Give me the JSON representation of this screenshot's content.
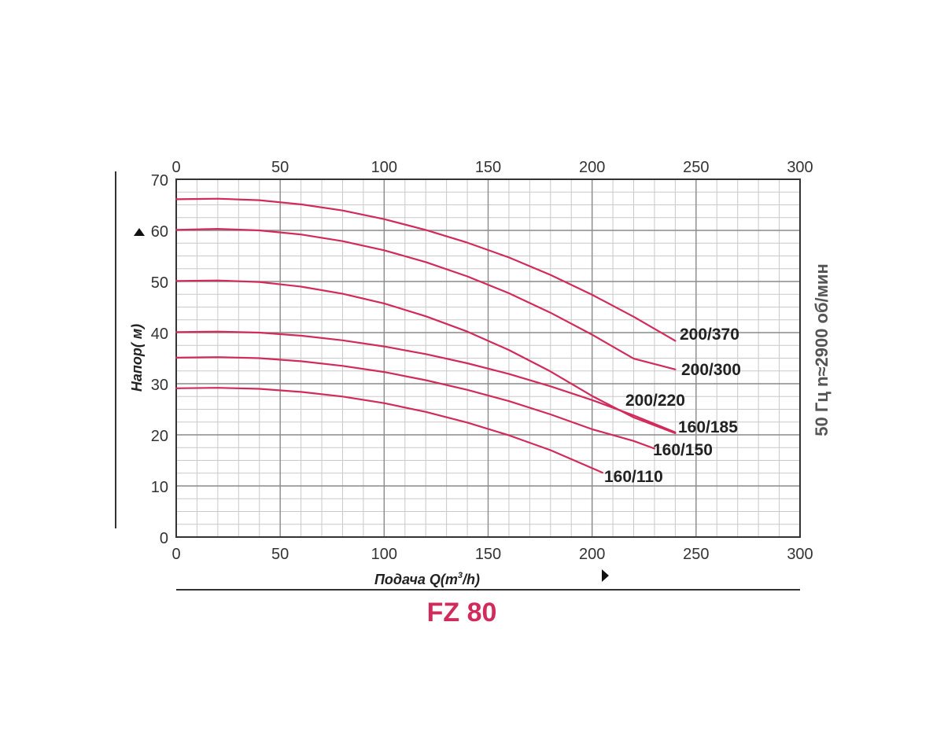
{
  "chart_data": {
    "type": "line",
    "title": "FZ 80",
    "xlabel": "Подача Q(m³/h)",
    "xlabel_main": "Подача Q(m",
    "xlabel_sup": "3",
    "xlabel_tail": "/h)",
    "ylabel": "Напор( м)",
    "right_label": "50 Гц  n≈2900 об/мин",
    "xlim": [
      0,
      300
    ],
    "ylim": [
      0,
      70
    ],
    "x_ticks": [
      0,
      50,
      100,
      150,
      200,
      250,
      300
    ],
    "y_ticks": [
      0,
      10,
      20,
      30,
      40,
      50,
      60,
      70
    ],
    "x_tick_labels": [
      "0",
      "50",
      "100",
      "150",
      "200",
      "250",
      "300"
    ],
    "y_tick_labels": [
      "0",
      "10",
      "20",
      "30",
      "40",
      "50",
      "60",
      "70"
    ],
    "minor_grid": {
      "x_step": 10,
      "y_step": 2.5
    },
    "grid": true,
    "line_color": "#d12b5b",
    "series": [
      {
        "name": "200/370",
        "x": [
          0,
          20,
          40,
          60,
          80,
          100,
          120,
          140,
          160,
          180,
          200,
          220,
          240
        ],
        "y": [
          66.1,
          66.2,
          65.9,
          65.1,
          63.9,
          62.2,
          60.1,
          57.6,
          54.7,
          51.3,
          47.4,
          43.1,
          38.4
        ]
      },
      {
        "name": "200/300",
        "x": [
          0,
          20,
          40,
          60,
          80,
          100,
          120,
          140,
          160,
          180,
          200,
          220,
          240
        ],
        "y": [
          60.1,
          60.3,
          60.0,
          59.2,
          57.9,
          56.1,
          53.8,
          51.0,
          47.7,
          43.9,
          39.6,
          34.9,
          32.8
        ]
      },
      {
        "name": "200/220",
        "x": [
          0,
          20,
          40,
          60,
          80,
          100,
          120,
          140,
          160,
          180,
          200,
          220,
          240
        ],
        "y": [
          50.1,
          50.2,
          49.9,
          49.0,
          47.6,
          45.7,
          43.2,
          40.2,
          36.6,
          32.4,
          27.6,
          23.4,
          20.3
        ]
      },
      {
        "name": "160/185",
        "x": [
          0,
          20,
          40,
          60,
          80,
          100,
          120,
          140,
          160,
          180,
          200,
          220,
          240
        ],
        "y": [
          40.1,
          40.2,
          40.0,
          39.4,
          38.5,
          37.3,
          35.8,
          34.0,
          31.9,
          29.5,
          26.8,
          23.8,
          20.5
        ]
      },
      {
        "name": "160/150",
        "x": [
          0,
          20,
          40,
          60,
          80,
          100,
          120,
          140,
          160,
          180,
          200,
          220,
          230
        ],
        "y": [
          35.1,
          35.2,
          35.0,
          34.4,
          33.5,
          32.3,
          30.7,
          28.8,
          26.6,
          24.0,
          21.1,
          18.8,
          17.3
        ]
      },
      {
        "name": "160/110",
        "x": [
          0,
          20,
          40,
          60,
          80,
          100,
          120,
          140,
          160,
          180,
          205
        ],
        "y": [
          29.1,
          29.2,
          29.0,
          28.4,
          27.5,
          26.2,
          24.5,
          22.4,
          19.9,
          17.0,
          12.6
        ]
      }
    ]
  }
}
